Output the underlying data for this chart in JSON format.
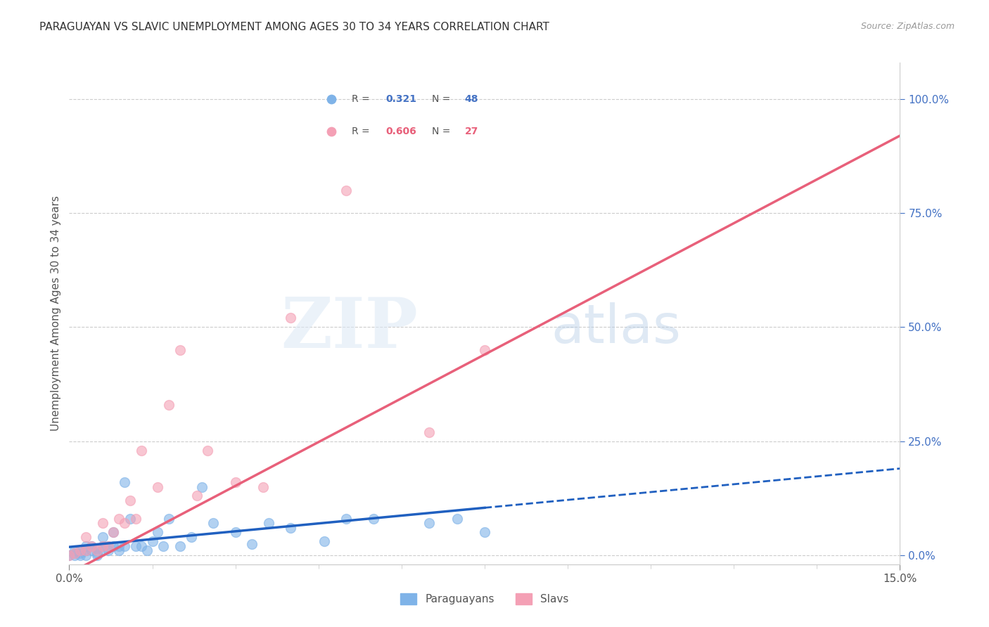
{
  "title": "PARAGUAYAN VS SLAVIC UNEMPLOYMENT AMONG AGES 30 TO 34 YEARS CORRELATION CHART",
  "source": "Source: ZipAtlas.com",
  "ylabel": "Unemployment Among Ages 30 to 34 years",
  "ylabel_right_ticks": [
    "0.0%",
    "25.0%",
    "50.0%",
    "75.0%",
    "100.0%"
  ],
  "ylabel_right_values": [
    0.0,
    0.25,
    0.5,
    0.75,
    1.0
  ],
  "xmin": 0.0,
  "xmax": 0.15,
  "ymin": -0.02,
  "ymax": 1.08,
  "r_paraguayan": 0.321,
  "n_paraguayan": 48,
  "r_slavic": 0.606,
  "n_slavic": 27,
  "color_paraguayan": "#7fb3e8",
  "color_slavic": "#f4a0b5",
  "color_paraguayan_line": "#2060c0",
  "color_slavic_line": "#e8607a",
  "par_line_x0": 0.0,
  "par_line_y0": 0.018,
  "par_line_x1": 0.15,
  "par_line_y1": 0.19,
  "par_line_solid_end": 0.075,
  "slav_line_x0": 0.0,
  "slav_line_y0": -0.04,
  "slav_line_x1": 0.15,
  "slav_line_y1": 0.92,
  "paraguayan_x": [
    0.0,
    0.001,
    0.001,
    0.001,
    0.002,
    0.002,
    0.002,
    0.003,
    0.003,
    0.003,
    0.004,
    0.004,
    0.005,
    0.005,
    0.005,
    0.006,
    0.006,
    0.006,
    0.007,
    0.007,
    0.008,
    0.008,
    0.009,
    0.009,
    0.01,
    0.01,
    0.011,
    0.012,
    0.013,
    0.014,
    0.015,
    0.016,
    0.017,
    0.018,
    0.02,
    0.022,
    0.024,
    0.026,
    0.03,
    0.033,
    0.036,
    0.04,
    0.046,
    0.05,
    0.055,
    0.065,
    0.07,
    0.075
  ],
  "paraguayan_y": [
    0.0,
    0.0,
    0.005,
    0.01,
    0.0,
    0.005,
    0.01,
    0.0,
    0.01,
    0.02,
    0.01,
    0.02,
    0.0,
    0.005,
    0.015,
    0.01,
    0.02,
    0.04,
    0.01,
    0.02,
    0.02,
    0.05,
    0.01,
    0.02,
    0.02,
    0.16,
    0.08,
    0.02,
    0.02,
    0.01,
    0.03,
    0.05,
    0.02,
    0.08,
    0.02,
    0.04,
    0.15,
    0.07,
    0.05,
    0.025,
    0.07,
    0.06,
    0.03,
    0.08,
    0.08,
    0.07,
    0.08,
    0.05
  ],
  "slavic_x": [
    0.0,
    0.001,
    0.002,
    0.003,
    0.003,
    0.004,
    0.005,
    0.006,
    0.006,
    0.007,
    0.008,
    0.009,
    0.01,
    0.011,
    0.012,
    0.013,
    0.016,
    0.018,
    0.02,
    0.023,
    0.025,
    0.03,
    0.035,
    0.04,
    0.05,
    0.065,
    0.075
  ],
  "slavic_y": [
    0.0,
    0.005,
    0.01,
    0.01,
    0.04,
    0.02,
    0.01,
    0.02,
    0.07,
    0.02,
    0.05,
    0.08,
    0.07,
    0.12,
    0.08,
    0.23,
    0.15,
    0.33,
    0.45,
    0.13,
    0.23,
    0.16,
    0.15,
    0.52,
    0.8,
    0.27,
    0.45
  ]
}
